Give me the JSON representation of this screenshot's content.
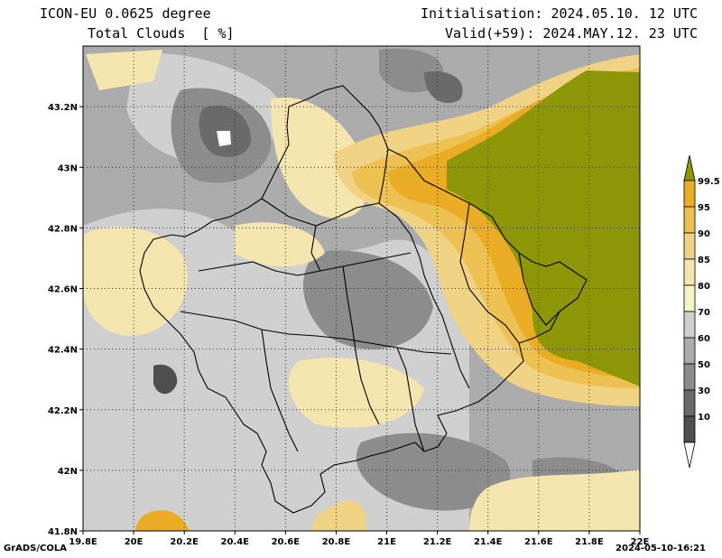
{
  "header": {
    "line1_left": "ICON-EU 0.0625 degree",
    "line2_left": "Total Clouds  [ %]",
    "line1_right": "Initialisation: 2024.05.10. 12 UTC",
    "line2_right": "Valid(+59): 2024.MAY.12. 23 UTC"
  },
  "footer": {
    "left": "GrADS/COLA",
    "right": "2024-05-10-16:21"
  },
  "axes": {
    "lon_ticks": [
      "19.8E",
      "20E",
      "20.2E",
      "20.4E",
      "20.6E",
      "20.8E",
      "21E",
      "21.2E",
      "21.4E",
      "21.6E",
      "21.8E",
      "22E"
    ],
    "lat_ticks": [
      "43.2N",
      "43N",
      "42.8N",
      "42.6N",
      "42.4N",
      "42.2N",
      "42N",
      "41.8N"
    ],
    "lon_range": [
      19.8,
      22.0
    ],
    "lat_range": [
      41.8,
      43.4
    ]
  },
  "legend": {
    "labels": [
      "99.5",
      "95",
      "90",
      "85",
      "80",
      "70",
      "60",
      "50",
      "30",
      "10"
    ],
    "colors": [
      "#8c9606",
      "#e9ac24",
      "#edc052",
      "#f0d285",
      "#f4e5ae",
      "#f5f2c5",
      "#cfcfcf",
      "#ababab",
      "#8c8c8c",
      "#6a6a6a",
      "#4f4f4f",
      "#fafafa"
    ]
  },
  "colors": {
    "overcast": "#8c9606",
    "high": "#e9ac24",
    "mid_high": "#f0d285",
    "pale": "#f4e5ae",
    "light_grey": "#cfcfcf",
    "grey": "#ababab",
    "dark_grey": "#8c8c8c",
    "darker_grey": "#6a6a6a",
    "darkest": "#4f4f4f"
  }
}
